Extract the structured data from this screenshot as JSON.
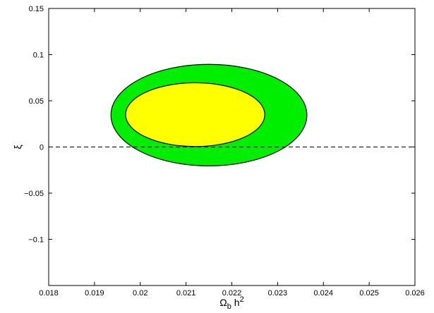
{
  "chart_data": {
    "type": "contour",
    "title": "",
    "xlabel": {
      "base": "Ω",
      "sub": "b",
      "mid": " h",
      "sup": "2"
    },
    "ylabel": "ξ",
    "xlim": [
      0.018,
      0.026
    ],
    "ylim": [
      -0.15,
      0.15
    ],
    "x_ticks": [
      0.018,
      0.019,
      0.02,
      0.021,
      0.022,
      0.023,
      0.024,
      0.025,
      0.026
    ],
    "x_tick_labels": [
      "0.018",
      "0.019",
      "0.02",
      "0.021",
      "0.022",
      "0.023",
      "0.024",
      "0.025",
      "0.026"
    ],
    "y_ticks": [
      -0.1,
      -0.05,
      0,
      0.05,
      0.1,
      0.15
    ],
    "y_tick_labels": [
      "−0.1",
      "−0.05",
      "0",
      "0.05",
      "0.1",
      "0.15"
    ],
    "grid": false,
    "regions": [
      {
        "level": "outer",
        "center": [
          0.02136,
          0.0345
        ],
        "x_range": [
          0.01936,
          0.02364
        ],
        "y_range": [
          -0.0205,
          0.0895
        ],
        "color": "#00ee00"
      },
      {
        "level": "inner",
        "center": [
          0.02136,
          0.0345
        ],
        "x_range": [
          0.01968,
          0.02272
        ],
        "y_range": [
          0.0005,
          0.0695
        ],
        "color": "#ffff00"
      }
    ],
    "reference_line": {
      "y": 0,
      "style": "dashed"
    }
  }
}
